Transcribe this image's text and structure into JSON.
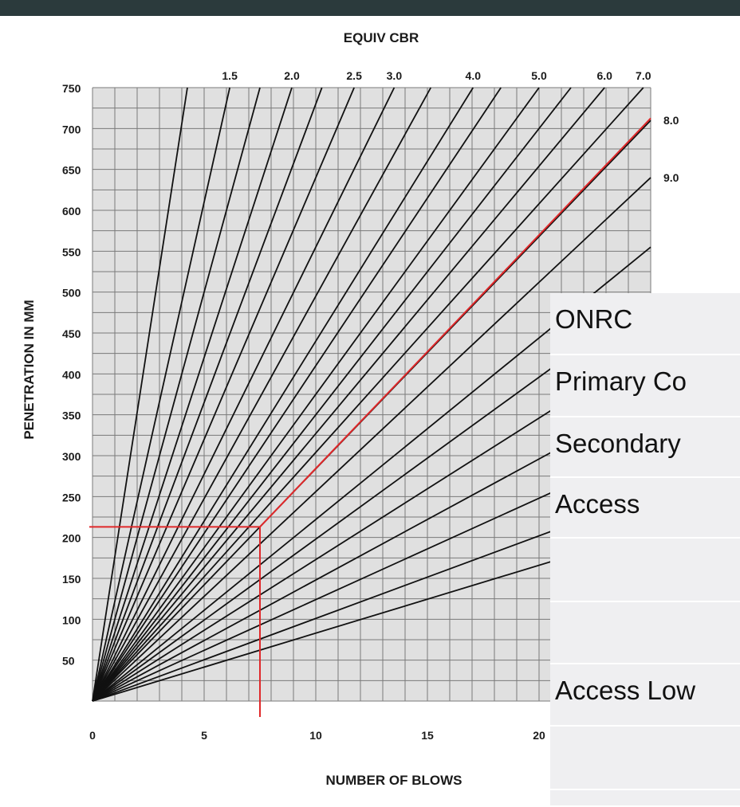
{
  "chart_data": {
    "type": "line",
    "title": "EQUIV CBR",
    "xlabel": "NUMBER OF BLOWS",
    "ylabel": "PENETRATION IN MM",
    "xlim": [
      0,
      25
    ],
    "ylim": [
      0,
      750
    ],
    "x_ticks": [
      "0",
      "5",
      "10",
      "15",
      "20"
    ],
    "y_ticks": [
      "50",
      "100",
      "150",
      "200",
      "250",
      "300",
      "350",
      "400",
      "450",
      "500",
      "550",
      "600",
      "650",
      "700",
      "750"
    ],
    "grid": true,
    "cbr_lines": [
      {
        "label": "",
        "slope": 176.5
      },
      {
        "label": "1.5",
        "slope": 122.0
      },
      {
        "label": "",
        "slope": 100.0
      },
      {
        "label": "2.0",
        "slope": 84.0
      },
      {
        "label": "",
        "slope": 73.0
      },
      {
        "label": "2.5",
        "slope": 64.0
      },
      {
        "label": "3.0",
        "slope": 55.5
      },
      {
        "label": "",
        "slope": 49.5
      },
      {
        "label": "4.0",
        "slope": 44.0
      },
      {
        "label": "",
        "slope": 41.0
      },
      {
        "label": "5.0",
        "slope": 37.5
      },
      {
        "label": "",
        "slope": 35.0
      },
      {
        "label": "6.0",
        "slope": 32.7
      },
      {
        "label": "7.0",
        "slope": 30.4
      },
      {
        "label": "8.0",
        "slope": 28.4
      },
      {
        "label": "9.0",
        "slope": 25.6
      },
      {
        "label": "",
        "slope": 22.2
      },
      {
        "label": "",
        "slope": 19.8
      },
      {
        "label": "",
        "slope": 17.3
      },
      {
        "label": "",
        "slope": 14.8
      },
      {
        "label": "",
        "slope": 12.4
      },
      {
        "label": "",
        "slope": 10.1
      },
      {
        "label": "",
        "slope": 8.3
      }
    ],
    "red_line": {
      "slope": 28.5
    },
    "red_guide": {
      "x": 7.5,
      "y": 213
    }
  },
  "overlay_table": {
    "rows": [
      "ONRC",
      "Primary Co",
      "Secondary",
      "Access",
      "",
      "",
      "Access Low",
      "",
      ""
    ]
  }
}
